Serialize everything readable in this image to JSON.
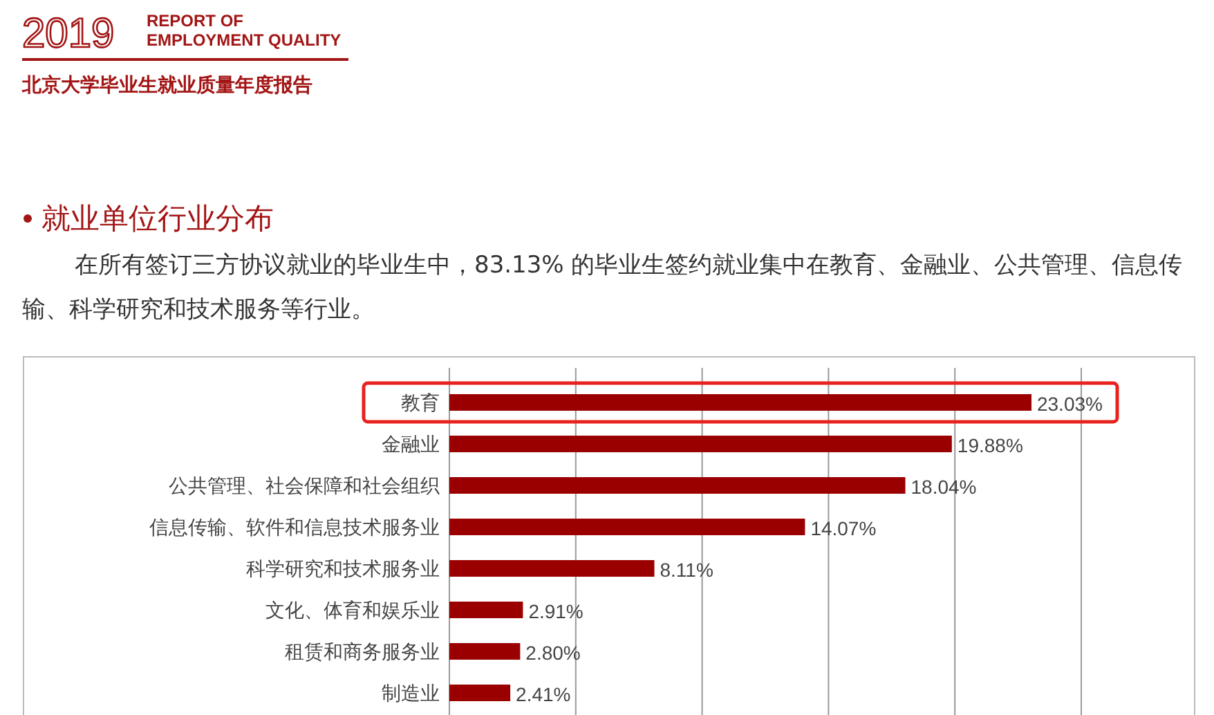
{
  "chart_data": {
    "type": "bar",
    "orientation": "horizontal",
    "title": "就业单位行业分布",
    "subtitle": "在所有签订三方协议就业的毕业生中，83.13% 的毕业生签约就业集中在教育、金融业、公共管理、信息传输、科学研究和技术服务等行业。",
    "annotations": [
      "2019",
      "REPORT OF",
      "EMPLOYMENT QUALITY",
      "北京大学毕业生就业质量年度报告"
    ],
    "categories": [
      "教育",
      "金融业",
      "公共管理、社会保障和社会组织",
      "信息传输、软件和信息技术服务业",
      "科学研究和技术服务业",
      "文化、体育和娱乐业",
      "租赁和商务服务业",
      "制造业"
    ],
    "values": [
      23.03,
      19.88,
      18.04,
      14.07,
      8.11,
      2.91,
      2.8,
      2.41
    ],
    "value_labels": [
      "23.03%",
      "19.88%",
      "18.04%",
      "14.07%",
      "8.11%",
      "2.91%",
      "2.80%",
      "2.41%"
    ],
    "color": "#9b0000",
    "xlim": [
      0,
      25
    ],
    "xticks": [
      {
        "value": 0,
        "label": null
      },
      {
        "value": 5,
        "label": null
      },
      {
        "value": 10,
        "label": null
      },
      {
        "value": 15,
        "label": null
      },
      {
        "value": 20,
        "label": null
      },
      {
        "value": 25,
        "label": null
      }
    ],
    "grid": "x",
    "tick_labels": "y"
  }
}
